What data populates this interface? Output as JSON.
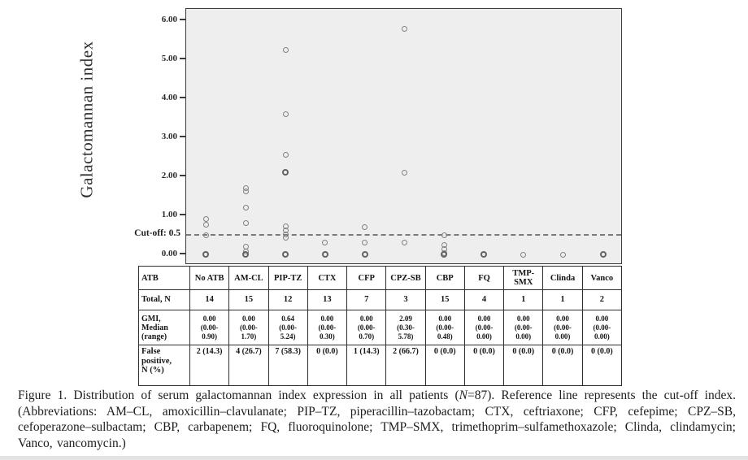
{
  "chart_data": {
    "type": "scatter",
    "title": "",
    "xlabel": "",
    "ylabel": "Galactomannan index",
    "ylim": [
      0,
      6.3
    ],
    "grid": false,
    "plot_background": "#efeeee",
    "marker": "open-circle",
    "marker_color": "#818181",
    "y_axis": {
      "ticks": [
        {
          "label": "6.00",
          "value": 6.0
        },
        {
          "label": "5.00",
          "value": 5.0
        },
        {
          "label": "4.00",
          "value": 4.0
        },
        {
          "label": "3.00",
          "value": 3.0
        },
        {
          "label": "2.00",
          "value": 2.0
        },
        {
          "label": "1.00",
          "value": 1.0
        },
        {
          "label": "0.00",
          "value": 0.0
        }
      ]
    },
    "cutoff": {
      "label": "Cut-off: 0.5",
      "value": 0.5,
      "line_style": "dashed"
    },
    "categories": [
      "No ATB",
      "AM-CL",
      "PIP-TZ",
      "CTX",
      "CFP",
      "CPZ-SB",
      "CBP",
      "FQ",
      "TMP-SMX",
      "Clinda",
      "Vanco"
    ],
    "series": [
      {
        "name": "Galactomannan index values",
        "points": [
          {
            "category": "No ATB",
            "value": 0.9,
            "overlap": false
          },
          {
            "category": "No ATB",
            "value": 0.77,
            "overlap": false
          },
          {
            "category": "No ATB",
            "value": 0.5,
            "overlap": false
          },
          {
            "category": "No ATB",
            "value": 0.0,
            "overlap": true
          },
          {
            "category": "AM-CL",
            "value": 1.7,
            "overlap": false
          },
          {
            "category": "AM-CL",
            "value": 1.61,
            "overlap": false
          },
          {
            "category": "AM-CL",
            "value": 1.2,
            "overlap": false
          },
          {
            "category": "AM-CL",
            "value": 0.8,
            "overlap": false
          },
          {
            "category": "AM-CL",
            "value": 0.19,
            "overlap": false
          },
          {
            "category": "AM-CL",
            "value": 0.08,
            "overlap": false
          },
          {
            "category": "AM-CL",
            "value": 0.0,
            "overlap": true
          },
          {
            "category": "PIP-TZ",
            "value": 5.24,
            "overlap": false
          },
          {
            "category": "PIP-TZ",
            "value": 3.6,
            "overlap": false
          },
          {
            "category": "PIP-TZ",
            "value": 2.56,
            "overlap": false
          },
          {
            "category": "PIP-TZ",
            "value": 2.1,
            "overlap": true
          },
          {
            "category": "PIP-TZ",
            "value": 0.72,
            "overlap": false
          },
          {
            "category": "PIP-TZ",
            "value": 0.62,
            "overlap": false
          },
          {
            "category": "PIP-TZ",
            "value": 0.52,
            "overlap": false
          },
          {
            "category": "PIP-TZ",
            "value": 0.42,
            "overlap": false
          },
          {
            "category": "PIP-TZ",
            "value": 0.0,
            "overlap": true
          },
          {
            "category": "CTX",
            "value": 0.3,
            "overlap": false
          },
          {
            "category": "CTX",
            "value": 0.0,
            "overlap": true
          },
          {
            "category": "CFP",
            "value": 0.7,
            "overlap": false
          },
          {
            "category": "CFP",
            "value": 0.31,
            "overlap": false
          },
          {
            "category": "CFP",
            "value": 0.0,
            "overlap": true
          },
          {
            "category": "CPZ-SB",
            "value": 5.78,
            "overlap": false
          },
          {
            "category": "CPZ-SB",
            "value": 2.09,
            "overlap": false
          },
          {
            "category": "CPZ-SB",
            "value": 0.3,
            "overlap": false
          },
          {
            "category": "CBP",
            "value": 0.48,
            "overlap": false
          },
          {
            "category": "CBP",
            "value": 0.24,
            "overlap": false
          },
          {
            "category": "CBP",
            "value": 0.14,
            "overlap": false
          },
          {
            "category": "CBP",
            "value": 0.04,
            "overlap": false
          },
          {
            "category": "CBP",
            "value": 0.0,
            "overlap": true
          },
          {
            "category": "FQ",
            "value": 0.0,
            "overlap": true
          },
          {
            "category": "TMP-SMX",
            "value": 0.0,
            "overlap": false
          },
          {
            "category": "Clinda",
            "value": 0.0,
            "overlap": false
          },
          {
            "category": "Vanco",
            "value": 0.0,
            "overlap": true
          }
        ]
      }
    ]
  },
  "table": {
    "corner_label": "ATB",
    "columns": [
      "No ATB",
      "AM-CL",
      "PIP-TZ",
      "CTX",
      "CFP",
      "CPZ-SB",
      "CBP",
      "FQ",
      "TMP-\nSMX",
      "Clinda",
      "Vanco"
    ],
    "rows": [
      {
        "label": "Total, N",
        "values": [
          "14",
          "15",
          "12",
          "13",
          "7",
          "3",
          "15",
          "4",
          "1",
          "1",
          "2"
        ]
      },
      {
        "label": "GMI,\nMedian\n(range)",
        "values": [
          "0.00\n(0.00-\n0.90)",
          "0.00\n(0.00-\n1.70)",
          "0.64\n(0.00-\n5.24)",
          "0.00\n(0.00-\n0.30)",
          "0.00\n(0.00-\n0.70)",
          "2.09\n(0.30-\n5.78)",
          "0.00\n(0.00-\n0.48)",
          "0.00\n(0.00-\n0.00)",
          "0.00\n(0.00-\n0.00)",
          "0.00\n(0.00-\n0.00)",
          "0.00\n(0.00-\n0.00)"
        ]
      },
      {
        "label": "False\npositive,\nN (%)",
        "values": [
          "2 (14.3)",
          "4 (26.7)",
          "7 (58.3)",
          "0 (0.0)",
          "1 (14.3)",
          "2 (66.7)",
          "0 (0.0)",
          "0 (0.0)",
          "0 (0.0)",
          "0 (0.0)",
          "0 (0.0)"
        ]
      }
    ]
  },
  "figure": {
    "caption": {
      "pre_italic": "Figure 1. Distribution of serum galactomannan index expression in all patients (",
      "italic": "N",
      "post_italic": "=87). Reference line represents the cut-off index. (Abbreviations: AM–CL, amoxicillin–clavulanate; PIP–TZ, piperacillin–tazobactam; CTX, ceftriaxone; CFP, cefepime; CPZ–SB, cefoperazone–sulbactam; CBP, carbapenem; FQ, fluoroquinolone; TMP–SMX, trimethoprim–sulfamethoxazole; Clinda, clindamycin; Vanco, vancomycin.)"
    }
  }
}
